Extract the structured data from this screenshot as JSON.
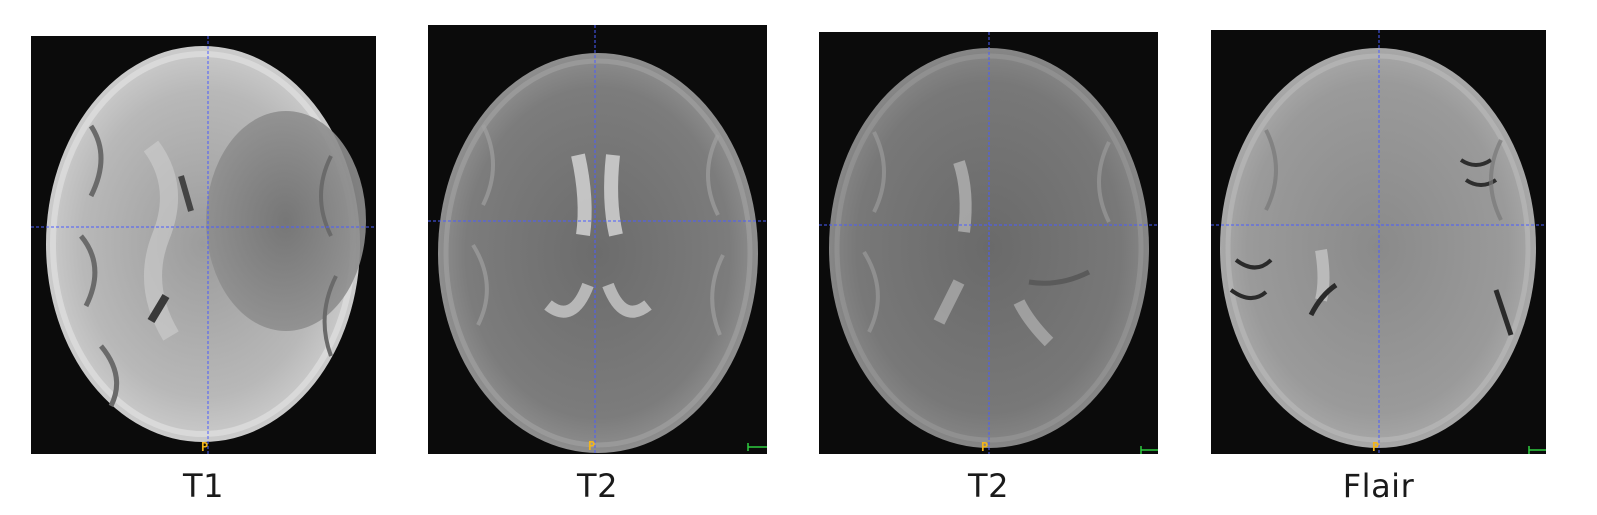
{
  "panels": [
    {
      "label": "T1",
      "orientation_marker": "P"
    },
    {
      "label": "T2",
      "orientation_marker": "P"
    },
    {
      "label": "T2",
      "orientation_marker": "P"
    },
    {
      "label": "Flair",
      "orientation_marker": "P"
    }
  ],
  "colors": {
    "background": "#0b0b0b",
    "crosshair": "#4a5cff",
    "orientation_marker": "#f3b51a",
    "scale_marker": "#2ecc40",
    "caption": "#1a1a1a"
  },
  "icons": [
    "crosshair-icon",
    "scale-marker-icon"
  ]
}
